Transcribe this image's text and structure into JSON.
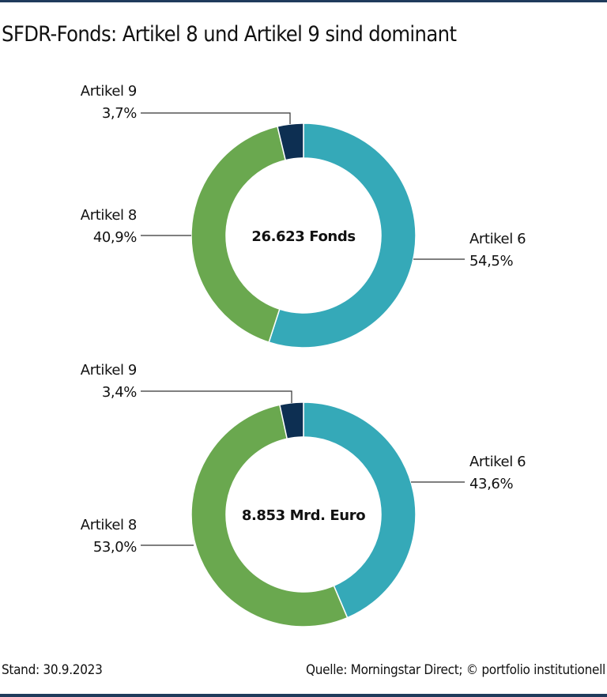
{
  "title": "SFDR-Fonds: Artikel 8 und Artikel 9 sind dominant",
  "footer": {
    "left": "Stand: 30.9.2023",
    "right": "Quelle: Morningstar Direct; © portfolio institutionell"
  },
  "colors": {
    "Artikel 6": "#35a9b8",
    "Artikel 8": "#6aa84f",
    "Artikel 9": "#0d2f52",
    "border": "#1f3b5c"
  },
  "chart_data": [
    {
      "type": "pie",
      "donut": true,
      "center_label": "26.623 Fonds",
      "slices": [
        {
          "name": "Artikel 6",
          "value": 54.5,
          "label": "54,5%"
        },
        {
          "name": "Artikel 8",
          "value": 40.9,
          "label": "40,9%"
        },
        {
          "name": "Artikel 9",
          "value": 3.7,
          "label": "3,7%"
        }
      ]
    },
    {
      "type": "pie",
      "donut": true,
      "center_label": "8.853 Mrd. Euro",
      "slices": [
        {
          "name": "Artikel 6",
          "value": 43.6,
          "label": "43,6%"
        },
        {
          "name": "Artikel 8",
          "value": 53.0,
          "label": "53,0%"
        },
        {
          "name": "Artikel 9",
          "value": 3.4,
          "label": "3,4%"
        }
      ]
    }
  ]
}
